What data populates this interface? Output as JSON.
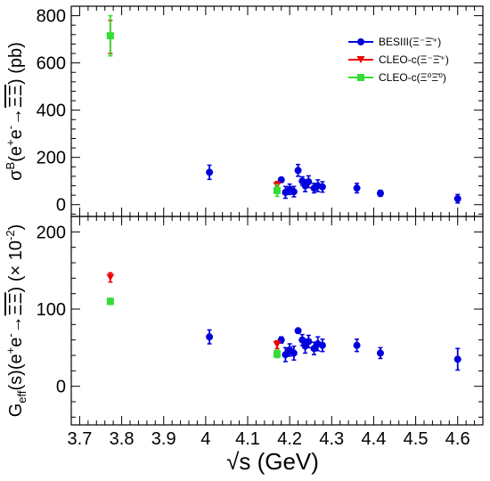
{
  "chart_data": [
    {
      "type": "scatter",
      "ylabel": "σ^B(e^+e^- → ΞΞ̄) (pb)",
      "ylim": [
        -50,
        840
      ],
      "yticks": [
        0,
        200,
        400,
        600,
        800
      ],
      "legend": {
        "position": "top-right",
        "entries": [
          {
            "label": "BESIII(Ξ⁻Ξ̄⁺)",
            "color": "#0000dd",
            "marker": "circle"
          },
          {
            "label": "CLEO-c(Ξ⁻Ξ̄⁺)",
            "color": "#ee0000",
            "marker": "triangle-down"
          },
          {
            "label": "CLEO-c(Ξ⁰Ξ̄⁰)",
            "color": "#33dd33",
            "marker": "square"
          }
        ]
      },
      "series": [
        {
          "name": "BESIII(Ξ⁻Ξ̄⁺)",
          "color": "#0000dd",
          "marker": "circle",
          "points": [
            {
              "x": 4.009,
              "y": 137,
              "err": 30
            },
            {
              "x": 4.18,
              "y": 105,
              "err": 10
            },
            {
              "x": 4.19,
              "y": 52,
              "err": 25
            },
            {
              "x": 4.2,
              "y": 65,
              "err": 22
            },
            {
              "x": 4.21,
              "y": 55,
              "err": 22
            },
            {
              "x": 4.22,
              "y": 145,
              "err": 25
            },
            {
              "x": 4.23,
              "y": 100,
              "err": 18
            },
            {
              "x": 4.237,
              "y": 80,
              "err": 25
            },
            {
              "x": 4.245,
              "y": 97,
              "err": 25
            },
            {
              "x": 4.258,
              "y": 70,
              "err": 20
            },
            {
              "x": 4.267,
              "y": 80,
              "err": 25
            },
            {
              "x": 4.278,
              "y": 75,
              "err": 22
            },
            {
              "x": 4.36,
              "y": 70,
              "err": 20
            },
            {
              "x": 4.416,
              "y": 48,
              "err": 13
            },
            {
              "x": 4.6,
              "y": 25,
              "err": 18
            }
          ]
        },
        {
          "name": "CLEO-c(Ξ⁻Ξ̄⁺)",
          "color": "#ee0000",
          "marker": "triangle-down",
          "points": [
            {
              "x": 3.773,
              "y": 710,
              "err": 70
            },
            {
              "x": 4.17,
              "y": 80,
              "err": 18
            }
          ]
        },
        {
          "name": "CLEO-c(Ξ⁰Ξ̄⁰)",
          "color": "#33dd33",
          "marker": "square",
          "points": [
            {
              "x": 3.773,
              "y": 715,
              "err": 85
            },
            {
              "x": 4.17,
              "y": 60,
              "err": 25
            }
          ]
        }
      ]
    },
    {
      "type": "scatter",
      "xlabel": "√s  (GeV)",
      "ylabel": "G_eff(s)(e^+e^- → ΞΞ̄) (× 10^-2)",
      "xlim": [
        3.68,
        4.66
      ],
      "ylim": [
        -50,
        220
      ],
      "xticks": [
        "3.7",
        "3.8",
        "3.9",
        "4",
        "4.1",
        "4.2",
        "4.3",
        "4.4",
        "4.5",
        "4.6"
      ],
      "yticks": [
        0,
        100,
        200
      ],
      "series": [
        {
          "name": "BESIII(Ξ⁻Ξ̄⁺)",
          "color": "#0000dd",
          "marker": "circle",
          "points": [
            {
              "x": 4.009,
              "y": 64,
              "err": 9
            },
            {
              "x": 4.18,
              "y": 60,
              "err": 4
            },
            {
              "x": 4.19,
              "y": 41,
              "err": 9
            },
            {
              "x": 4.2,
              "y": 47,
              "err": 8
            },
            {
              "x": 4.21,
              "y": 43,
              "err": 9
            },
            {
              "x": 4.22,
              "y": 72,
              "err": 3
            },
            {
              "x": 4.23,
              "y": 60,
              "err": 7
            },
            {
              "x": 4.237,
              "y": 52,
              "err": 9
            },
            {
              "x": 4.245,
              "y": 58,
              "err": 8
            },
            {
              "x": 4.258,
              "y": 49,
              "err": 8
            },
            {
              "x": 4.267,
              "y": 55,
              "err": 9
            },
            {
              "x": 4.278,
              "y": 53,
              "err": 8
            },
            {
              "x": 4.36,
              "y": 53,
              "err": 8
            },
            {
              "x": 4.416,
              "y": 43,
              "err": 7
            },
            {
              "x": 4.6,
              "y": 35,
              "err": 14
            }
          ]
        },
        {
          "name": "CLEO-c(Ξ⁻Ξ̄⁺)",
          "color": "#ee0000",
          "marker": "triangle-down",
          "points": [
            {
              "x": 3.773,
              "y": 141,
              "err": 6
            },
            {
              "x": 4.17,
              "y": 54,
              "err": 5
            }
          ]
        },
        {
          "name": "CLEO-c(Ξ⁰Ξ̄⁰)",
          "color": "#33dd33",
          "marker": "square",
          "points": [
            {
              "x": 3.773,
              "y": 110,
              "err": 4
            },
            {
              "x": 4.17,
              "y": 42,
              "err": 5
            }
          ]
        }
      ]
    }
  ]
}
